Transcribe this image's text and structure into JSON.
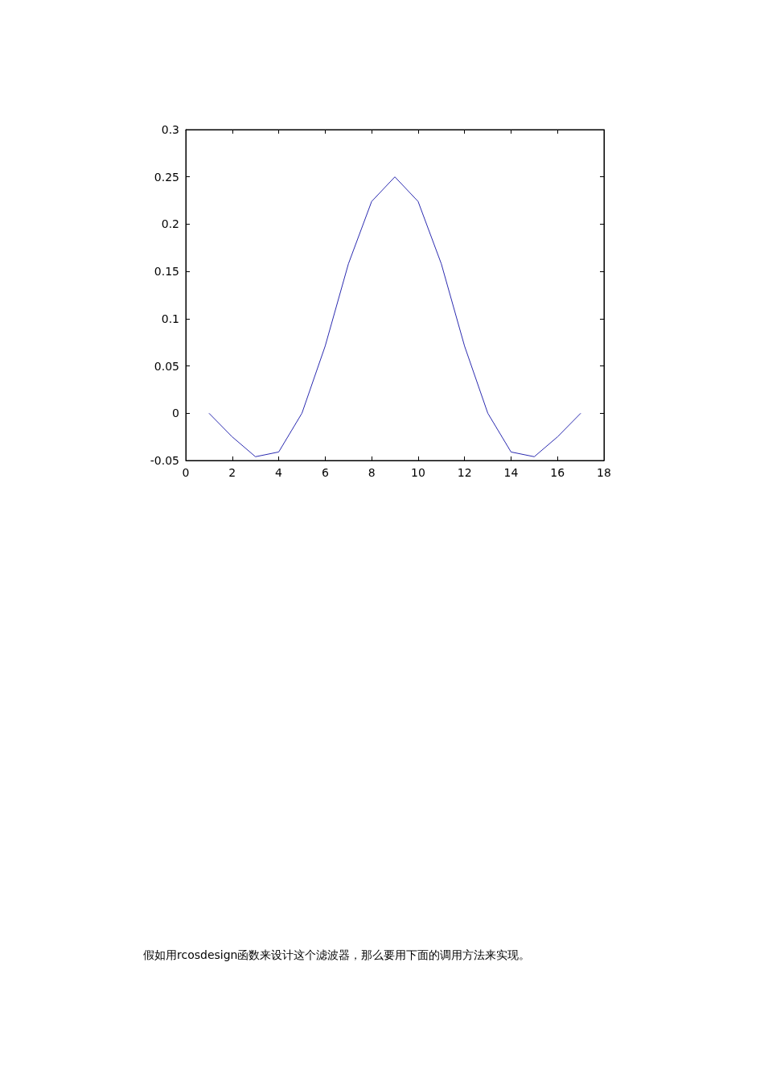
{
  "chart_data": {
    "type": "line",
    "x": [
      1,
      2,
      3,
      4,
      5,
      6,
      7,
      8,
      9,
      10,
      11,
      12,
      13,
      14,
      15,
      16,
      17
    ],
    "series": [
      {
        "color": "#2b2bb0",
        "values": [
          0,
          -0.025,
          -0.046,
          -0.041,
          0,
          0.071,
          0.158,
          0.224,
          0.25,
          0.224,
          0.158,
          0.071,
          0,
          -0.041,
          -0.046,
          -0.025,
          0
        ]
      }
    ],
    "xlim": [
      0,
      18
    ],
    "xticks": [
      0,
      2,
      4,
      6,
      8,
      10,
      12,
      14,
      16,
      18
    ],
    "ylim": [
      -0.05,
      0.3
    ],
    "yticks": [
      -0.05,
      0,
      0.05,
      0.1,
      0.15,
      0.2,
      0.25,
      0.3
    ],
    "grid": false,
    "marker": "none",
    "line_style": "solid",
    "annotations": [
      "假如用rcosdesign函数来设计这个滤波器，那么要用下面的调用方法来实现。"
    ]
  }
}
